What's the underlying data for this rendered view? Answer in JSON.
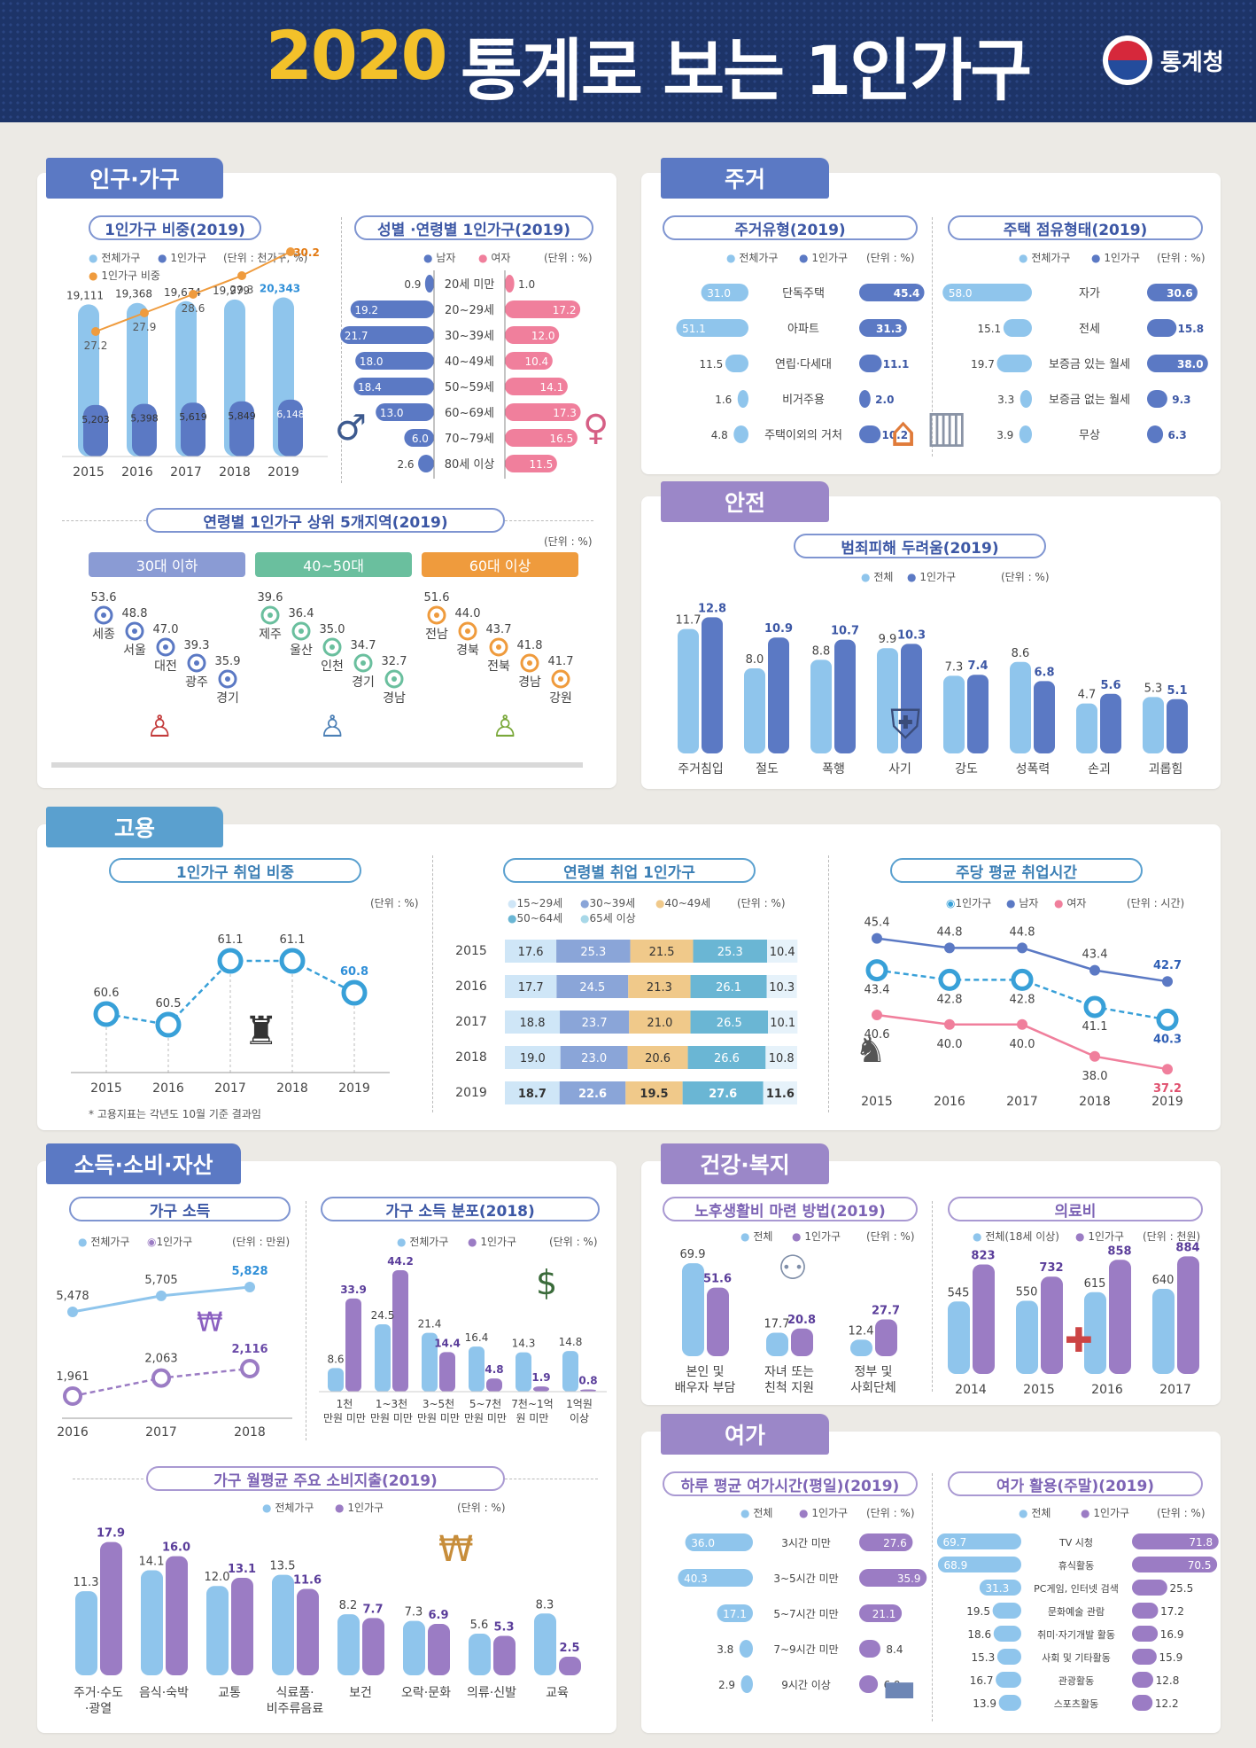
{
  "header": {
    "year": "2020",
    "title": "통계로 보는 1인가구",
    "logo": "통계청"
  },
  "colors": {
    "light": "#8fc5ec",
    "blue": "#5b79c4",
    "purple": "#9b7cc4",
    "orange": "#ef9b3d",
    "pink": "#f07f9c",
    "teal": "#6abf9e"
  },
  "sections": {
    "pop": "인구·가구",
    "housing": "주거",
    "safety": "안전",
    "employ": "고용",
    "income": "소득·소비·자산",
    "health": "건강·복지",
    "leisure": "여가"
  },
  "pop": {
    "ratio": {
      "title": "1인가구 비중(2019)",
      "legend_all": "전체가구",
      "legend_one": "1인가구",
      "legend_ratio": "1인가구 비중",
      "unit": "(단위 : 천가구, %)",
      "years": [
        "2015",
        "2016",
        "2017",
        "2018",
        "2019"
      ],
      "all": [
        19111,
        19368,
        19674,
        19979,
        20343
      ],
      "all_labels": [
        "19,111",
        "19,368",
        "19,674",
        "19,979",
        "20,343"
      ],
      "one": [
        5203,
        5398,
        5619,
        5849,
        6148
      ],
      "one_labels": [
        "5,203",
        "5,398",
        "5,619",
        "5,849",
        "6,148"
      ],
      "ratio": [
        27.2,
        27.9,
        28.6,
        29.3,
        30.2
      ]
    },
    "sexage": {
      "title": "성별 ·연령별 1인가구(2019)",
      "legend_m": "남자",
      "legend_f": "여자",
      "unit": "(단위 : %)",
      "groups": [
        "20세 미만",
        "20~29세",
        "30~39세",
        "40~49세",
        "50~59세",
        "60~69세",
        "70~79세",
        "80세 이상"
      ],
      "male": [
        0.9,
        19.2,
        21.7,
        18.0,
        18.4,
        13.0,
        6.0,
        2.6
      ],
      "female": [
        1.0,
        17.2,
        12.0,
        10.4,
        14.1,
        17.3,
        16.5,
        11.5
      ]
    },
    "regions": {
      "title": "연령별 1인가구 상위 5개지역(2019)",
      "unit": "(단위 : %)",
      "groups": [
        {
          "name": "30대 이하",
          "items": [
            {
              "v": "53.6",
              "r": "세종"
            },
            {
              "v": "48.8",
              "r": "서울"
            },
            {
              "v": "47.0",
              "r": "대전"
            },
            {
              "v": "39.3",
              "r": "광주"
            },
            {
              "v": "35.9",
              "r": "경기"
            }
          ]
        },
        {
          "name": "40~50대",
          "items": [
            {
              "v": "39.6",
              "r": "제주"
            },
            {
              "v": "36.4",
              "r": "울산"
            },
            {
              "v": "35.0",
              "r": "인천"
            },
            {
              "v": "34.7",
              "r": "경기"
            },
            {
              "v": "32.7",
              "r": "경남"
            }
          ]
        },
        {
          "name": "60대 이상",
          "items": [
            {
              "v": "51.6",
              "r": "전남"
            },
            {
              "v": "44.0",
              "r": "경북"
            },
            {
              "v": "43.7",
              "r": "전북"
            },
            {
              "v": "41.8",
              "r": "경남"
            },
            {
              "v": "41.7",
              "r": "강원"
            }
          ]
        }
      ]
    }
  },
  "housing": {
    "type": {
      "title": "주거유형(2019)",
      "legend_all": "전체가구",
      "legend_one": "1인가구",
      "unit": "(단위 : %)",
      "cats": [
        "단독주택",
        "아파트",
        "연립·다세대",
        "비거주용",
        "주택이외의 거처"
      ],
      "all": [
        31.0,
        51.1,
        11.5,
        1.6,
        4.8
      ],
      "one": [
        45.4,
        31.3,
        11.1,
        2.0,
        10.2
      ]
    },
    "tenure": {
      "title": "주택 점유형태(2019)",
      "legend_all": "전체가구",
      "legend_one": "1인가구",
      "unit": "(단위 : %)",
      "cats": [
        "자가",
        "전세",
        "보증금 있는 월세",
        "보증금 없는 월세",
        "무상"
      ],
      "all": [
        58.0,
        15.1,
        19.7,
        3.3,
        3.9
      ],
      "one": [
        30.6,
        15.8,
        38.0,
        9.3,
        6.3
      ]
    }
  },
  "safety": {
    "title": "범죄피해 두려움(2019)",
    "legend_all": "전체",
    "legend_one": "1인가구",
    "unit": "(단위 : %)",
    "cats": [
      "주거침입",
      "절도",
      "폭행",
      "사기",
      "강도",
      "성폭력",
      "손괴",
      "괴롭힘"
    ],
    "all": [
      11.7,
      8.0,
      8.8,
      9.9,
      7.3,
      8.6,
      4.7,
      5.3
    ],
    "one": [
      12.8,
      10.9,
      10.7,
      10.3,
      7.4,
      6.8,
      5.6,
      5.1
    ]
  },
  "employ": {
    "rate": {
      "title": "1인가구 취업 비중",
      "unit": "(단위 : %)",
      "years": [
        "2015",
        "2016",
        "2017",
        "2018",
        "2019"
      ],
      "values": [
        60.6,
        60.5,
        61.1,
        61.1,
        60.8
      ],
      "note": "* 고용지표는 각년도 10월 기준 결과임"
    },
    "age": {
      "title": "연령별 취업 1인가구",
      "unit": "(단위 : %)",
      "legend": [
        "15~29세",
        "30~39세",
        "40~49세",
        "50~64세",
        "65세 이상"
      ],
      "years": [
        "2015",
        "2016",
        "2017",
        "2018",
        "2019"
      ],
      "rows": [
        [
          17.6,
          25.3,
          21.5,
          25.3,
          10.4
        ],
        [
          17.7,
          24.5,
          21.3,
          26.1,
          10.3
        ],
        [
          18.8,
          23.7,
          21.0,
          26.5,
          10.1
        ],
        [
          19.0,
          23.0,
          20.6,
          26.6,
          10.8
        ],
        [
          18.7,
          22.6,
          19.5,
          27.6,
          11.6
        ]
      ]
    },
    "hours": {
      "title": "주당 평균 취업시간",
      "unit": "(단위 : 시간)",
      "legend_one": "1인가구",
      "legend_m": "남자",
      "legend_f": "여자",
      "years": [
        "2015",
        "2016",
        "2017",
        "2018",
        "2019"
      ],
      "male": [
        45.4,
        44.8,
        44.8,
        43.4,
        42.7
      ],
      "one": [
        43.4,
        42.8,
        42.8,
        41.1,
        40.3
      ],
      "female": [
        40.6,
        40.0,
        40.0,
        38.0,
        37.2
      ]
    }
  },
  "income": {
    "hh": {
      "title": "가구 소득",
      "legend_all": "전체가구",
      "legend_one": "1인가구",
      "unit": "(단위 : 만원)",
      "years": [
        "2016",
        "2017",
        "2018"
      ],
      "all": [
        5478,
        5705,
        5828
      ],
      "all_labels": [
        "5,478",
        "5,705",
        "5,828"
      ],
      "one": [
        1961,
        2063,
        2116
      ],
      "one_labels": [
        "1,961",
        "2,063",
        "2,116"
      ]
    },
    "dist": {
      "title": "가구 소득 분포(2018)",
      "legend_all": "전체가구",
      "legend_one": "1인가구",
      "unit": "(단위 : %)",
      "cats": [
        [
          "1천",
          "만원 미만"
        ],
        [
          "1~3천",
          "만원 미만"
        ],
        [
          "3~5천",
          "만원 미만"
        ],
        [
          "5~7천",
          "만원 미만"
        ],
        [
          "7천~1억",
          "원 미만"
        ],
        [
          "1억원",
          "이상"
        ]
      ],
      "all": [
        8.6,
        24.5,
        21.4,
        16.4,
        14.3,
        14.8
      ],
      "one": [
        33.9,
        44.2,
        14.4,
        4.8,
        1.9,
        0.8
      ]
    },
    "spend": {
      "title": "가구 월평균 주요 소비지출(2019)",
      "legend_all": "전체가구",
      "legend_one": "1인가구",
      "unit": "(단위 : %)",
      "cats": [
        [
          "주거·수도",
          "·광열"
        ],
        [
          "음식·숙박"
        ],
        [
          "교통"
        ],
        [
          "식료품·",
          "비주류음료"
        ],
        [
          "보건"
        ],
        [
          "오락·문화"
        ],
        [
          "의류·신발"
        ],
        [
          "교육"
        ]
      ],
      "all": [
        11.3,
        14.1,
        12.0,
        13.5,
        8.2,
        7.3,
        5.6,
        8.3
      ],
      "one": [
        17.9,
        16.0,
        13.1,
        11.6,
        7.7,
        6.9,
        5.3,
        2.5
      ]
    }
  },
  "health": {
    "old": {
      "title": "노후생활비 마련 방법(2019)",
      "legend_all": "전체",
      "legend_one": "1인가구",
      "unit": "(단위 : %)",
      "cats": [
        [
          "본인 및",
          "배우자 부담"
        ],
        [
          "자녀 또는",
          "친척 지원"
        ],
        [
          "정부 및",
          "사회단체"
        ]
      ],
      "all": [
        69.9,
        17.7,
        12.4
      ],
      "one": [
        51.6,
        20.8,
        27.7
      ]
    },
    "med": {
      "title": "의료비",
      "legend_all": "전체(18세 이상)",
      "legend_one": "1인가구",
      "unit": "(단위 : 천원)",
      "years": [
        "2014",
        "2015",
        "2016",
        "2017"
      ],
      "all": [
        545,
        550,
        615,
        640
      ],
      "one": [
        823,
        732,
        858,
        884
      ]
    }
  },
  "leisure": {
    "time": {
      "title": "하루 평균 여가시간(평일)(2019)",
      "legend_all": "전체",
      "legend_one": "1인가구",
      "unit": "(단위 : %)",
      "cats": [
        "3시간 미만",
        "3~5시간 미만",
        "5~7시간 미만",
        "7~9시간 미만",
        "9시간 이상"
      ],
      "all": [
        36.0,
        40.3,
        17.1,
        3.8,
        2.9
      ],
      "one": [
        27.6,
        35.9,
        21.1,
        8.4,
        6.9
      ]
    },
    "act": {
      "title": "여가 활용(주말)(2019)",
      "legend_all": "전체",
      "legend_one": "1인가구",
      "unit": "(단위 : %)",
      "cats": [
        "TV 시청",
        "휴식활동",
        "PC게임, 인터넷 검색",
        "문화예술 관람",
        "취미·자기개발 활동",
        "사회 및 기타활동",
        "관광활동",
        "스포츠활동"
      ],
      "all": [
        69.7,
        68.9,
        31.3,
        19.5,
        18.6,
        15.3,
        16.7,
        13.9
      ],
      "one": [
        71.8,
        70.5,
        25.5,
        17.2,
        16.9,
        15.9,
        12.8,
        12.2
      ]
    }
  }
}
